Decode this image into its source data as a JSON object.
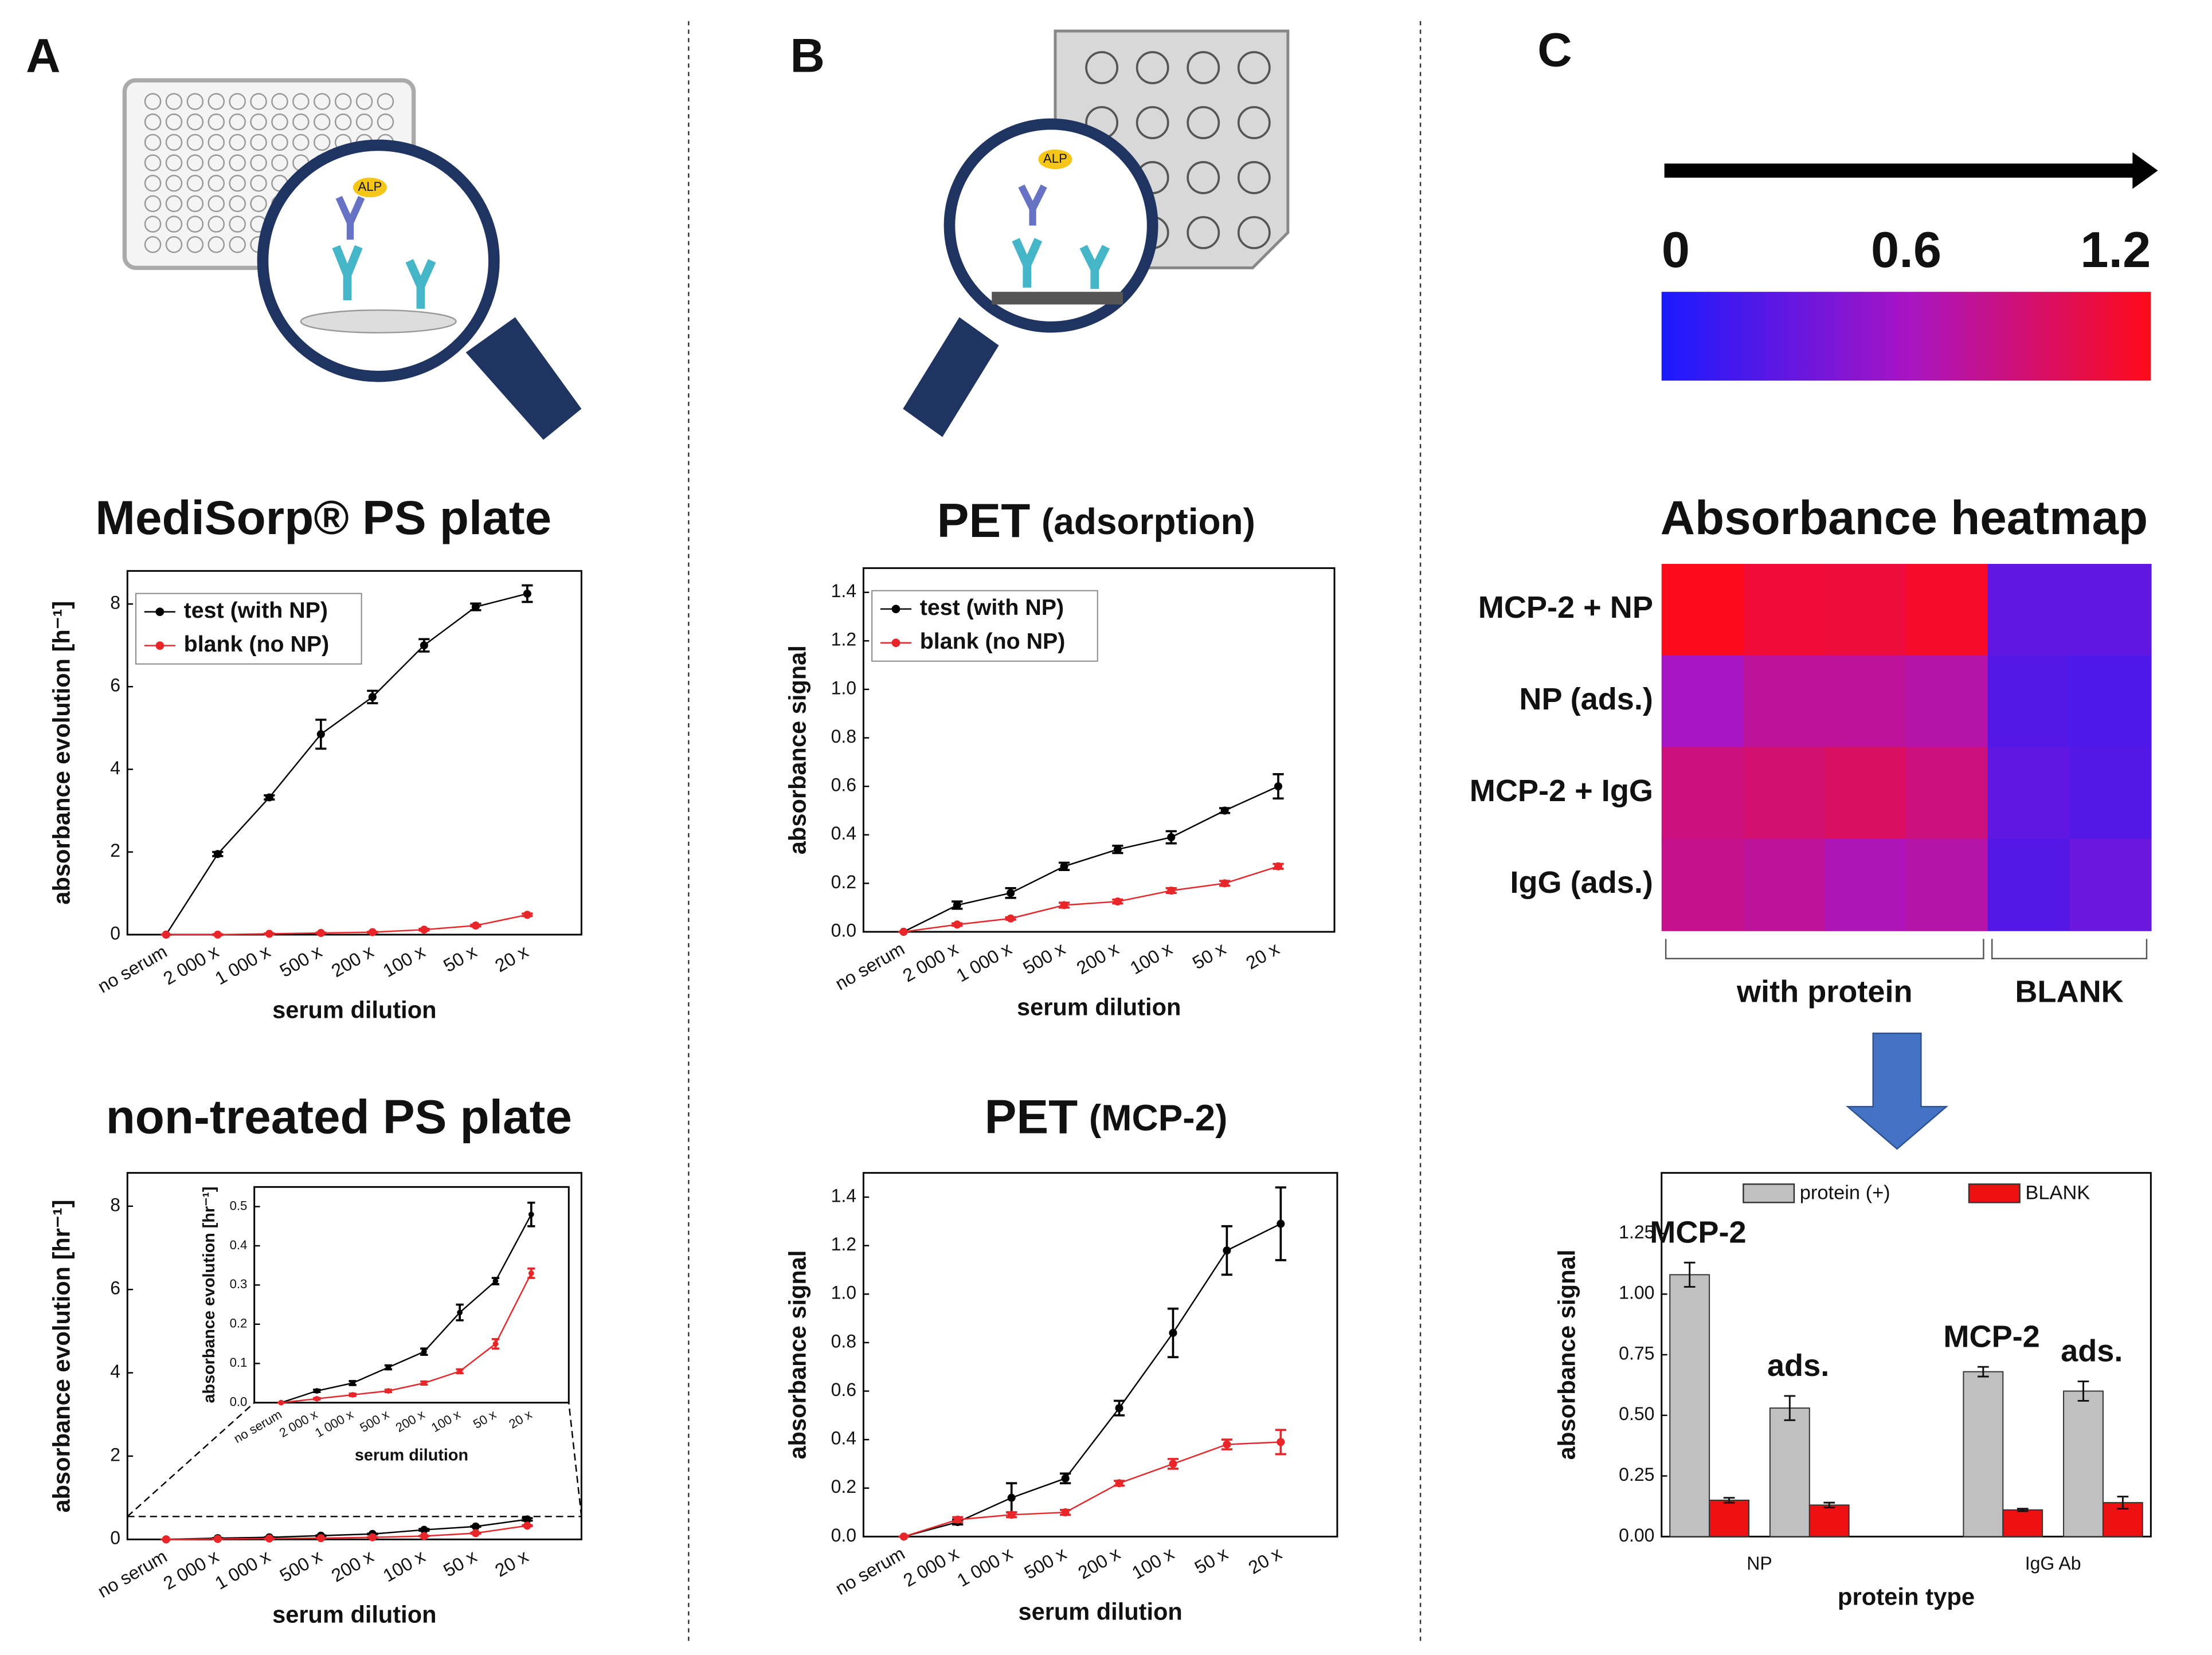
{
  "panels": [
    "A",
    "B",
    "C"
  ],
  "illustration_labels": [
    "ALP",
    "ALP"
  ],
  "chart_data": [
    {
      "type": "line",
      "title": "MediSorp® PS plate",
      "xlabel": "serum dilution",
      "ylabel": "absorbance evolution [h⁻¹]",
      "categories": [
        "no serum",
        "2 000 x",
        "1 000 x",
        "500 x",
        "200 x",
        "100 x",
        "50 x",
        "20 x"
      ],
      "ylim": [
        0,
        8.8
      ],
      "yticks": [
        0,
        2,
        4,
        6,
        8
      ],
      "legend": "upper left",
      "series": [
        {
          "name": "test (with NP)",
          "color": "#000000",
          "values": [
            0,
            1.95,
            3.32,
            4.85,
            5.75,
            7.0,
            7.93,
            8.25
          ],
          "errors": [
            0,
            0.05,
            0.05,
            0.35,
            0.15,
            0.15,
            0.08,
            0.2
          ]
        },
        {
          "name": "blank (no NP)",
          "color": "#e8262a",
          "values": [
            0,
            0,
            0.02,
            0.04,
            0.06,
            0.12,
            0.22,
            0.48
          ],
          "errors": [
            0,
            0.01,
            0.01,
            0.01,
            0.01,
            0.02,
            0.02,
            0.03
          ]
        }
      ]
    },
    {
      "type": "line",
      "title": "non-treated PS plate",
      "xlabel": "serum dilution",
      "ylabel": "absorbance evolution [hr⁻¹]",
      "categories": [
        "no serum",
        "2 000 x",
        "1 000 x",
        "500 x",
        "200 x",
        "100 x",
        "50 x",
        "20 x"
      ],
      "ylim": [
        0,
        8.8
      ],
      "yticks": [
        0,
        2,
        4,
        6,
        8
      ],
      "series": [
        {
          "name": "test (with NP)",
          "color": "#000000",
          "values": [
            0,
            0.03,
            0.05,
            0.09,
            0.13,
            0.23,
            0.31,
            0.48
          ],
          "errors": [
            0,
            0.003,
            0.005,
            0.005,
            0.008,
            0.02,
            0.008,
            0.03
          ]
        },
        {
          "name": "blank (no NP)",
          "color": "#e8262a",
          "values": [
            0,
            0.01,
            0.02,
            0.03,
            0.05,
            0.08,
            0.15,
            0.33
          ],
          "errors": [
            0,
            0.002,
            0.003,
            0.003,
            0.004,
            0.005,
            0.012,
            0.012
          ]
        }
      ],
      "inset": {
        "xlabel": "serum dilution",
        "ylabel": "absorbance evolution [hr⁻¹]",
        "ylim": [
          0,
          0.55
        ],
        "yticks": [
          {
            "value": 0,
            "label": "0.0"
          },
          0.1,
          0.2,
          0.3,
          0.4,
          0.5
        ]
      }
    },
    {
      "type": "line",
      "title": "PET",
      "title_note": "(adsorption)",
      "xlabel": "serum dilution",
      "ylabel": "absorbance signal",
      "categories": [
        "no serum",
        "2 000 x",
        "1 000 x",
        "500 x",
        "200 x",
        "100 x",
        "50 x",
        "20 x"
      ],
      "ylim": [
        0,
        1.5
      ],
      "yticks": [
        {
          "value": 0,
          "label": "0.0"
        },
        0.2,
        0.4,
        0.6,
        0.8,
        {
          "value": 1,
          "label": "1.0"
        },
        1.2,
        1.4
      ],
      "legend": "upper left",
      "series": [
        {
          "name": "test (with NP)",
          "color": "#000000",
          "values": [
            0,
            0.11,
            0.16,
            0.27,
            0.34,
            0.39,
            0.5,
            0.6
          ],
          "errors": [
            0,
            0.015,
            0.02,
            0.015,
            0.015,
            0.025,
            0.01,
            0.05
          ]
        },
        {
          "name": "blank (no NP)",
          "color": "#e8262a",
          "values": [
            0,
            0.03,
            0.055,
            0.11,
            0.125,
            0.17,
            0.2,
            0.27
          ],
          "errors": [
            0,
            0.005,
            0.005,
            0.01,
            0.008,
            0.01,
            0.01,
            0.01
          ]
        }
      ]
    },
    {
      "type": "line",
      "title": "PET",
      "title_note": "(MCP-2)",
      "xlabel": "serum dilution",
      "ylabel": "absorbance signal",
      "categories": [
        "no serum",
        "2 000 x",
        "1 000 x",
        "500 x",
        "200 x",
        "100 x",
        "50 x",
        "20 x"
      ],
      "ylim": [
        0,
        1.5
      ],
      "yticks": [
        {
          "value": 0,
          "label": "0.0"
        },
        0.2,
        0.4,
        0.6,
        0.8,
        {
          "value": 1,
          "label": "1.0"
        },
        1.2,
        1.4
      ],
      "series": [
        {
          "name": "test (with NP)",
          "color": "#000000",
          "values": [
            0,
            0.06,
            0.16,
            0.24,
            0.53,
            0.84,
            1.18,
            1.29
          ],
          "errors": [
            0,
            0.01,
            0.06,
            0.02,
            0.03,
            0.1,
            0.1,
            0.15
          ]
        },
        {
          "name": "blank (no NP)",
          "color": "#e8262a",
          "values": [
            0,
            0.07,
            0.09,
            0.1,
            0.22,
            0.3,
            0.38,
            0.39
          ],
          "errors": [
            0,
            0.01,
            0.01,
            0.01,
            0.01,
            0.02,
            0.02,
            0.05
          ]
        }
      ]
    },
    {
      "type": "heatmap",
      "title": "Absorbance heatmap",
      "rows": [
        "MCP-2 + NP",
        "NP (ads.)",
        "MCP-2 + IgG",
        "IgG (ads.)"
      ],
      "column_groups": [
        "with protein",
        "with protein",
        "with protein",
        "with protein",
        "BLANK",
        "BLANK"
      ],
      "values": [
        [
          1.2,
          1.1,
          1.08,
          1.15,
          0.3,
          0.3
        ],
        [
          0.6,
          0.75,
          0.75,
          0.7,
          0.25,
          0.22
        ],
        [
          0.85,
          0.9,
          0.95,
          0.85,
          0.3,
          0.25
        ],
        [
          0.8,
          0.75,
          0.65,
          0.7,
          0.25,
          0.35
        ]
      ],
      "clim": [
        0,
        1.2
      ],
      "cticks": [
        0,
        0.6,
        1.2
      ],
      "colormap": [
        "#1a1aff",
        "#a614c4",
        "#ff0a1a"
      ]
    },
    {
      "type": "bar",
      "xlabel": "protein type",
      "ylabel": "absorbance signal",
      "categories": [
        "NP",
        "NP",
        "IgG Ab",
        "IgG Ab"
      ],
      "bar_labels": [
        "MCP-2",
        "ads.",
        "MCP-2",
        "ads."
      ],
      "ylim": [
        0,
        1.5
      ],
      "yticks": [
        {
          "value": 0,
          "label": "0.00"
        },
        {
          "value": 0.25,
          "label": "0.25"
        },
        {
          "value": 0.5,
          "label": "0.50"
        },
        {
          "value": 0.75,
          "label": "0.75"
        },
        {
          "value": 1,
          "label": "1.00"
        },
        {
          "value": 1.25,
          "label": "1.25"
        }
      ],
      "legend": "upper center",
      "series": [
        {
          "name": "protein (+)",
          "color": "#c0c0c0",
          "values": [
            1.08,
            0.53,
            0.68,
            0.6
          ],
          "errors": [
            0.05,
            0.05,
            0.02,
            0.04
          ]
        },
        {
          "name": "BLANK",
          "color": "#ee1111",
          "values": [
            0.15,
            0.13,
            0.11,
            0.14
          ],
          "errors": [
            0.01,
            0.01,
            0.005,
            0.025
          ]
        }
      ]
    }
  ]
}
